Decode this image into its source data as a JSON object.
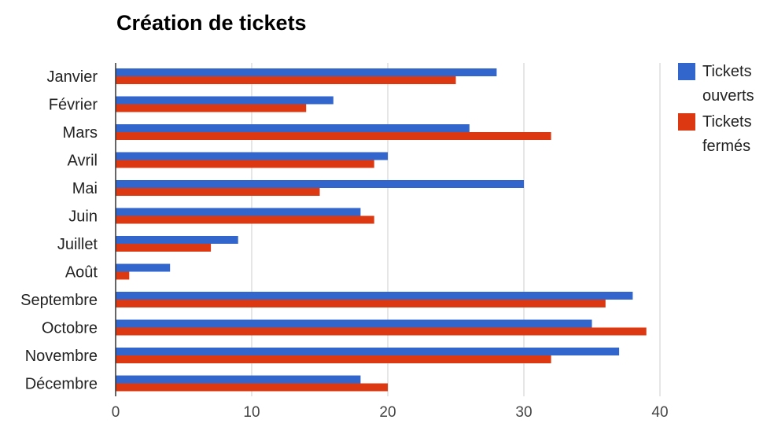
{
  "chart_data": {
    "type": "bar",
    "orientation": "horizontal",
    "title": "Création de tickets",
    "categories": [
      "Janvier",
      "Février",
      "Mars",
      "Avril",
      "Mai",
      "Juin",
      "Juillet",
      "Août",
      "Septembre",
      "Octobre",
      "Novembre",
      "Décembre"
    ],
    "series": [
      {
        "name": "Tickets ouverts",
        "legend_lines": [
          "Tickets",
          "ouverts"
        ],
        "color": "#3366cc",
        "values": [
          28,
          16,
          26,
          20,
          30,
          18,
          9,
          4,
          38,
          35,
          37,
          18
        ]
      },
      {
        "name": "Tickets fermés",
        "legend_lines": [
          "Tickets",
          "fermés"
        ],
        "color": "#dc3912",
        "values": [
          25,
          14,
          32,
          19,
          15,
          19,
          7,
          1,
          36,
          39,
          32,
          20
        ]
      }
    ],
    "xlim": [
      0,
      40
    ],
    "xticks": [
      "0",
      "10",
      "20",
      "30",
      "40"
    ],
    "grid": true,
    "legend_position": "right"
  }
}
